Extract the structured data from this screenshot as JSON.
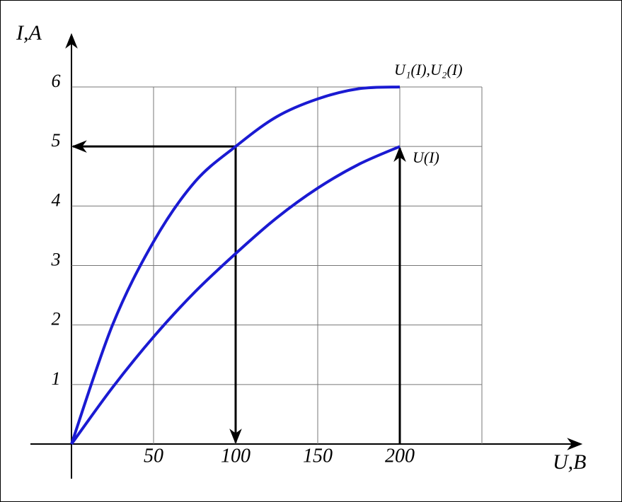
{
  "chart_data": {
    "type": "line",
    "x_label": "U,B",
    "y_label": "I,A",
    "x": [
      0,
      25,
      50,
      75,
      100,
      125,
      150,
      175,
      200
    ],
    "series": [
      {
        "name": "U₁(I),U₂(I)",
        "color": "#1a1ad2",
        "values": [
          0,
          2.0,
          3.4,
          4.4,
          5,
          5.5,
          5.8,
          5.97,
          6
        ]
      },
      {
        "name": "U(I)",
        "color": "#1a1ad2",
        "values": [
          0,
          0.95,
          1.8,
          2.55,
          3.2,
          3.8,
          4.3,
          4.7,
          5
        ]
      }
    ],
    "xlim": [
      0,
      250
    ],
    "ylim": [
      0,
      6
    ],
    "xticks": [
      50,
      100,
      150,
      200
    ],
    "yticks": [
      1,
      2,
      3,
      4,
      5,
      6
    ],
    "grid": true
  }
}
